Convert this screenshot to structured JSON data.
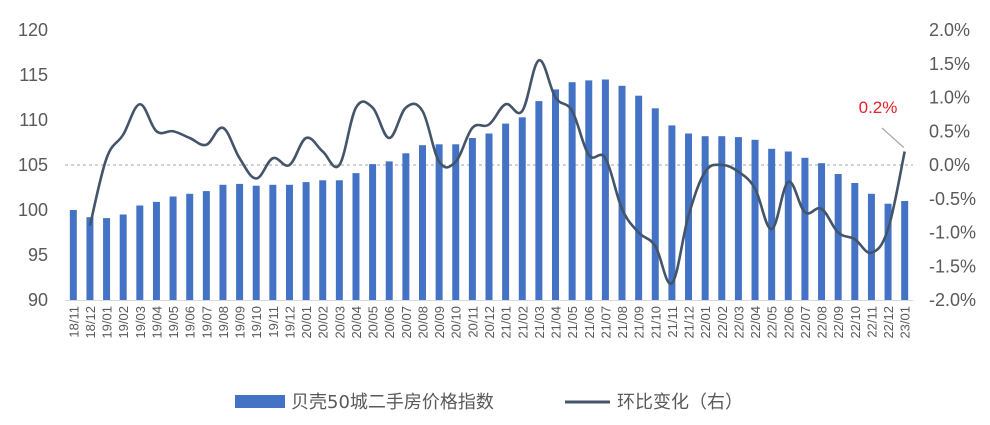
{
  "chart_data": {
    "type": "bar",
    "categories": [
      "18/11",
      "18/12",
      "19/01",
      "19/02",
      "19/03",
      "19/04",
      "19/05",
      "19/06",
      "19/07",
      "19/08",
      "19/09",
      "19/10",
      "19/11",
      "19/12",
      "20/01",
      "20/02",
      "20/03",
      "20/04",
      "20/05",
      "20/06",
      "20/07",
      "20/08",
      "20/09",
      "20/10",
      "20/11",
      "20/12",
      "21/01",
      "21/02",
      "21/03",
      "21/04",
      "21/05",
      "21/06",
      "21/07",
      "21/08",
      "21/09",
      "21/10",
      "21/11",
      "21/12",
      "22/01",
      "22/02",
      "22/03",
      "22/04",
      "22/05",
      "22/06",
      "22/07",
      "22/08",
      "22/09",
      "22/10",
      "22/11",
      "22/12",
      "23/01"
    ],
    "series": [
      {
        "name": "贝壳50城二手房价格指数",
        "type": "bar",
        "axis": "left",
        "color": "#4472c4",
        "values": [
          100.0,
          99.2,
          99.1,
          99.5,
          100.5,
          100.9,
          101.5,
          101.8,
          102.1,
          102.8,
          102.9,
          102.7,
          102.8,
          102.8,
          103.1,
          103.3,
          103.3,
          104.1,
          105.1,
          105.4,
          106.3,
          107.2,
          107.3,
          107.3,
          108.0,
          108.5,
          109.6,
          110.3,
          112.1,
          113.4,
          114.2,
          114.4,
          114.5,
          113.8,
          112.7,
          111.3,
          109.4,
          108.5,
          108.2,
          108.2,
          108.1,
          107.8,
          106.8,
          106.5,
          105.8,
          105.2,
          104.0,
          103.0,
          101.8,
          100.7,
          101.0
        ]
      },
      {
        "name": "环比变化（右）",
        "type": "line",
        "axis": "right",
        "color": "#44546a",
        "values": [
          null,
          -0.9,
          0.1,
          0.45,
          0.9,
          0.5,
          0.5,
          0.4,
          0.3,
          0.55,
          0.1,
          -0.2,
          0.1,
          0.0,
          0.4,
          0.2,
          0.0,
          0.85,
          0.85,
          0.4,
          0.85,
          0.8,
          0.05,
          0.05,
          0.55,
          0.6,
          0.9,
          0.8,
          1.55,
          1.0,
          0.8,
          0.15,
          0.1,
          -0.65,
          -1.0,
          -1.2,
          -1.75,
          -0.75,
          -0.1,
          0.0,
          -0.1,
          -0.35,
          -0.95,
          -0.25,
          -0.7,
          -0.65,
          -1.0,
          -1.1,
          -1.3,
          -0.95,
          0.2
        ]
      }
    ],
    "y_left": {
      "ticks": [
        "120",
        "115",
        "110",
        "105",
        "100",
        "95",
        "90"
      ],
      "lim": [
        90,
        120
      ]
    },
    "y_right": {
      "ticks": [
        "2.0%",
        "1.5%",
        "1.0%",
        "0.5%",
        "0.0%",
        "-0.5%",
        "-1.0%",
        "-1.5%",
        "-2.0%"
      ],
      "lim": [
        -2.0,
        2.0
      ]
    },
    "zero_line": {
      "style": "dashed",
      "color": "#a6a6a6"
    },
    "annotation": {
      "text": "0.2%",
      "color": "#e8202a",
      "target_index": 50
    },
    "legend": {
      "position": "bottom-center"
    },
    "grid": false
  }
}
